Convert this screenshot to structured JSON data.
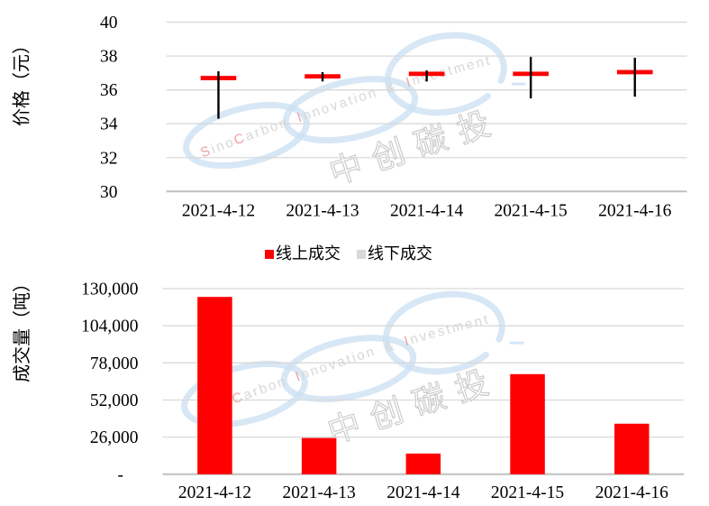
{
  "watermark": {
    "latin_text": "SinoCarbon Innovation & Investment",
    "latin_red_letter_indexes": [
      0,
      4,
      11,
      24
    ],
    "cjk_text": "中创碳投",
    "ring_color": "#cde1f3",
    "text_color": "#d7d7d7",
    "accent_color": "#f0a2a2",
    "cjk_outline_color": "#cccccc"
  },
  "legend": {
    "items": [
      {
        "label": "线上成交",
        "color": "#ff0000"
      },
      {
        "label": "线下成交",
        "color": "#d9d9d9"
      }
    ]
  },
  "chart_data": [
    {
      "type": "hlc-stock",
      "ylabel": "价格（元）",
      "categories": [
        "2021-4-12",
        "2021-4-13",
        "2021-4-14",
        "2021-4-15",
        "2021-4-16"
      ],
      "yticks": [
        30,
        32,
        34,
        36,
        38,
        40
      ],
      "ylim": [
        30,
        40
      ],
      "grid": true,
      "series": [
        {
          "name": "high",
          "values": [
            37.1,
            37.05,
            37.15,
            37.95,
            37.9
          ]
        },
        {
          "name": "low",
          "values": [
            34.3,
            36.5,
            36.5,
            35.5,
            35.6
          ]
        },
        {
          "name": "close",
          "values": [
            36.7,
            36.8,
            36.95,
            36.95,
            37.05
          ]
        }
      ],
      "colors": {
        "hl_line": "#000000",
        "close_dash": "#ff0000"
      }
    },
    {
      "type": "bar",
      "ylabel": "成交量（吨）",
      "categories": [
        "2021-4-12",
        "2021-4-13",
        "2021-4-14",
        "2021-4-15",
        "2021-4-16"
      ],
      "yticks": [
        0,
        26000,
        52000,
        78000,
        104000,
        130000
      ],
      "ytick_labels": [
        "-",
        "26,000",
        "52,000",
        "78,000",
        "104,000",
        "130,000"
      ],
      "ylim": [
        0,
        130000
      ],
      "grid": true,
      "values": [
        124200,
        25400,
        14500,
        70100,
        35400
      ],
      "bar_color": "#ff0000"
    }
  ]
}
